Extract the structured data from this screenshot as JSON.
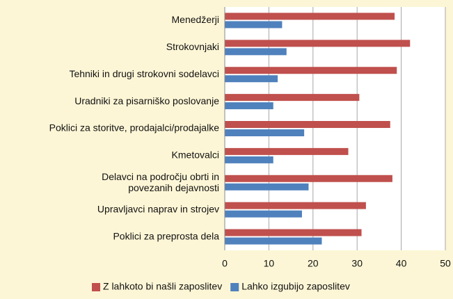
{
  "chart_data": {
    "type": "hbar",
    "categories": [
      "Menedžerji",
      "Strokovnjaki",
      "Tehniki in drugi strokovni sodelavci",
      "Uradniki za pisarniško poslovanje",
      "Poklici za storitve, prodajalci/prodajalke",
      "Kmetovalci",
      "Delavci na področju obrti in\npovezanih dejavnosti",
      "Upravljavci naprav in strojev",
      "Poklici za preprosta dela"
    ],
    "series": [
      {
        "name": "Z lahkoto bi našli zaposlitev",
        "color": "#c0504d",
        "values": [
          38.5,
          42,
          39,
          30.5,
          37.5,
          28,
          38,
          32,
          31
        ]
      },
      {
        "name": "Lahko izgubijo zaposlitev",
        "color": "#4f81bd",
        "values": [
          13,
          14,
          12,
          11,
          18,
          11,
          19,
          17.5,
          22
        ]
      }
    ],
    "xlim": [
      0,
      50
    ],
    "xticks": [
      0,
      10,
      20,
      30,
      40,
      50
    ],
    "grid": true,
    "legend": "bottom"
  }
}
